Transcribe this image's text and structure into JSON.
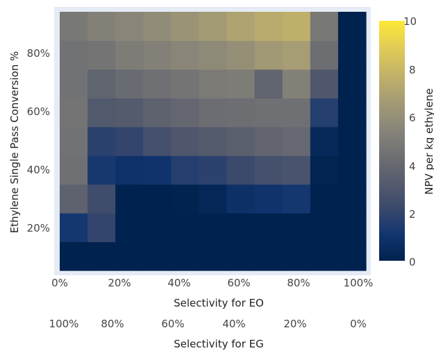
{
  "chart_data": {
    "type": "heatmap",
    "xlabel": "Selectivity for EO",
    "xlabel2": "Selectivity for EG",
    "ylabel": "Ethylene Single Pass Conversion %",
    "x_tick_labels": [
      "0%",
      "20%",
      "40%",
      "60%",
      "80%",
      "100%"
    ],
    "x2_tick_labels": [
      "100%",
      "80%",
      "60%",
      "40%",
      "20%",
      "0%"
    ],
    "y_tick_labels": [
      "20%",
      "40%",
      "60%",
      "80%"
    ],
    "colorbar": {
      "title": "NPV per kg ethylene",
      "range": [
        0,
        10
      ],
      "tick_labels": [
        "0",
        "2",
        "4",
        "6",
        "8",
        "10"
      ],
      "colorscale": [
        "#00224e",
        "#123570",
        "#3b496c",
        "#575d6d",
        "#707173",
        "#8a8779",
        "#a59c74",
        "#c3b369",
        "#e1cc55",
        "#fee838"
      ]
    },
    "x": [
      0,
      10,
      20,
      30,
      40,
      50,
      60,
      70,
      80,
      90,
      100
    ],
    "y": [
      10,
      20,
      30,
      40,
      50,
      60,
      70,
      80,
      90
    ],
    "z": [
      [
        0,
        0,
        0,
        0,
        0,
        0,
        0,
        0,
        0,
        0,
        0
      ],
      [
        1.2,
        2.0,
        0,
        0,
        0,
        0,
        0,
        0,
        0,
        0,
        0
      ],
      [
        3.6,
        2.4,
        0,
        0,
        0.05,
        0.3,
        0.8,
        1.0,
        1.2,
        0,
        0
      ],
      [
        4.4,
        1.3,
        0.9,
        1.0,
        1.6,
        1.8,
        2.2,
        2.6,
        2.8,
        0.1,
        0
      ],
      [
        4.5,
        1.8,
        2.0,
        2.6,
        3.0,
        3.2,
        3.5,
        3.8,
        4.0,
        0.4,
        0
      ],
      [
        4.6,
        3.1,
        3.2,
        3.6,
        3.9,
        4.2,
        4.3,
        4.4,
        4.4,
        1.6,
        0
      ],
      [
        4.5,
        3.7,
        4.1,
        4.4,
        4.6,
        4.9,
        5.0,
        3.7,
        5.2,
        3.0,
        0
      ],
      [
        4.5,
        4.6,
        5.0,
        5.2,
        5.5,
        5.7,
        6.0,
        6.5,
        6.7,
        4.3,
        0
      ],
      [
        4.8,
        5.2,
        5.5,
        5.8,
        6.2,
        6.6,
        7.0,
        7.4,
        7.6,
        4.8,
        0
      ]
    ],
    "grid": false
  }
}
